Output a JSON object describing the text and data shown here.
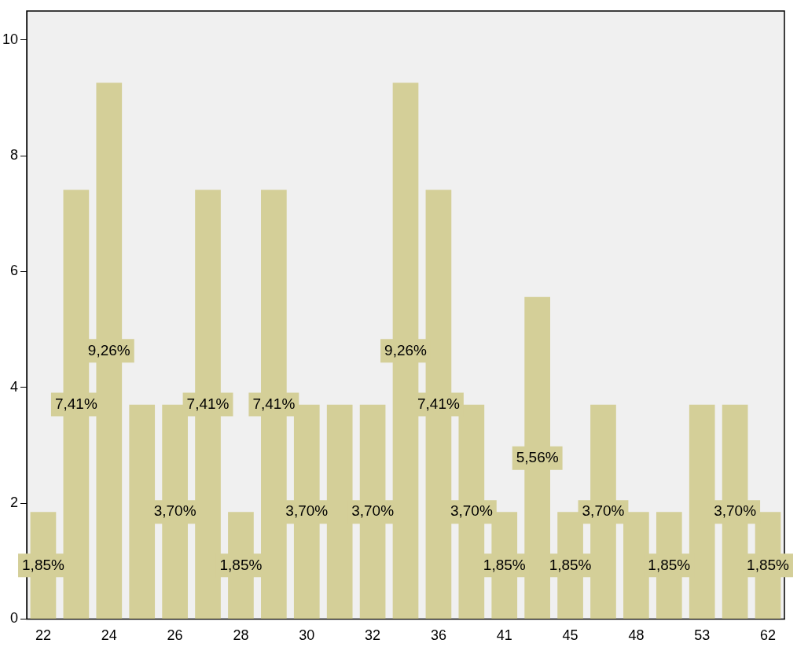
{
  "chart_data": {
    "type": "bar",
    "categories": [
      "22",
      null,
      "24",
      null,
      "26",
      null,
      "28",
      null,
      "30",
      null,
      "32",
      null,
      "36",
      null,
      "41",
      null,
      "45",
      null,
      "48",
      null,
      "53",
      null,
      "62"
    ],
    "values": [
      1.85,
      7.41,
      9.26,
      3.7,
      3.7,
      7.41,
      1.85,
      7.41,
      3.7,
      3.7,
      3.7,
      9.26,
      7.41,
      3.7,
      1.85,
      5.56,
      1.85,
      3.7,
      1.85,
      1.85,
      3.7,
      3.7,
      1.85
    ],
    "value_labels": [
      "1,85%",
      "7,41%",
      "9,26%",
      null,
      "3,70%",
      "7,41%",
      "1,85%",
      "7,41%",
      "3,70%",
      null,
      "3,70%",
      "9,26%",
      "7,41%",
      "3,70%",
      "1,85%",
      "5,56%",
      "1,85%",
      "3,70%",
      null,
      "1,85%",
      null,
      "3,70%",
      "1,85%"
    ],
    "color": "#d4cf98",
    "ylim": [
      0,
      10.5
    ],
    "yticks": [
      0,
      2,
      4,
      6,
      8,
      10
    ],
    "grid": false,
    "legend": false
  }
}
